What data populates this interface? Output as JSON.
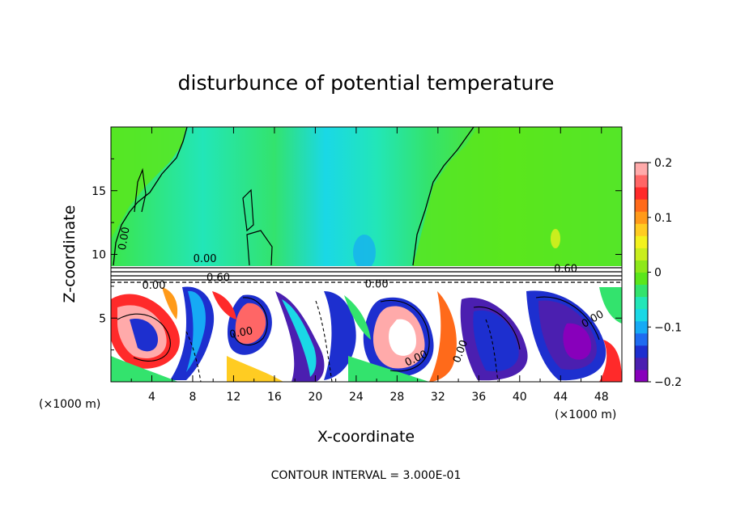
{
  "chart_data": {
    "type": "heatmap",
    "title": "disturbunce of potential temperature",
    "xlabel": "X-coordinate",
    "ylabel": "Z-coordinate",
    "x_unit": "(×1000 m)",
    "z_unit": "(×1000 m)",
    "x_ticks": [
      4,
      8,
      12,
      16,
      20,
      24,
      28,
      32,
      36,
      40,
      44,
      48
    ],
    "y_ticks": [
      5,
      10,
      15
    ],
    "xlim": [
      0,
      50
    ],
    "ylim": [
      0,
      20
    ],
    "colorbar": {
      "ticks": [
        0.2,
        0.1,
        0,
        -0.1,
        -0.2
      ],
      "tick_labels": [
        "0.2",
        "0.1",
        "0",
        "−0.1",
        "−0.2"
      ],
      "range": [
        -0.2,
        0.2
      ],
      "colors": [
        "#8800bb",
        "#4b1fb0",
        "#1d2fcf",
        "#1e6bf0",
        "#16aaf5",
        "#1ad8e6",
        "#22e6b8",
        "#33e36d",
        "#5be61c",
        "#8ee81a",
        "#c9ee1e",
        "#f3f21e",
        "#ffcc22",
        "#ff9a1a",
        "#ff6a1a",
        "#ff2a2a",
        "#ff6666",
        "#ffaaaa"
      ]
    },
    "contour_labels": [
      {
        "text": "0.00",
        "x": 1.6,
        "z": 11.2,
        "rotation": -80
      },
      {
        "text": "0.00",
        "x": 9.2,
        "z": 9.4,
        "rotation": 0
      },
      {
        "text": "0.60",
        "x": 10.5,
        "z": 7.9,
        "rotation": 0
      },
      {
        "text": "0.00",
        "x": 4.2,
        "z": 7.3,
        "rotation": 0
      },
      {
        "text": "0.00",
        "x": 26.0,
        "z": 7.4,
        "rotation": 0
      },
      {
        "text": "0.60",
        "x": 44.5,
        "z": 8.6,
        "rotation": 0
      },
      {
        "text": "0.00",
        "x": 12.8,
        "z": 3.6,
        "rotation": -10
      },
      {
        "text": "0.00",
        "x": 30.0,
        "z": 1.6,
        "rotation": -25
      },
      {
        "text": "0.00",
        "x": 34.5,
        "z": 2.3,
        "rotation": -70
      },
      {
        "text": "0.00",
        "x": 47.3,
        "z": 4.7,
        "rotation": -30
      }
    ],
    "contour_interval": "CONTOUR INTERVAL = 3.000E-01"
  }
}
